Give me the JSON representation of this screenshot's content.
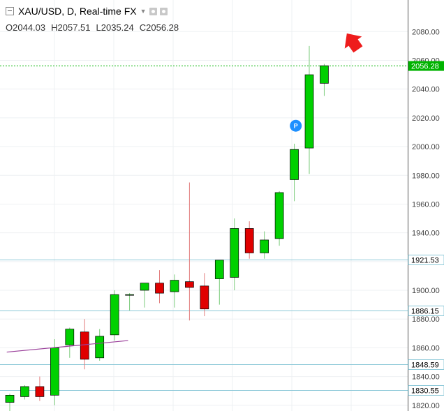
{
  "header": {
    "symbol": "XAU/USD, D, Real-time FX",
    "ohlc": [
      {
        "key": "O",
        "value": "2044.03"
      },
      {
        "key": "H",
        "value": "2057.51"
      },
      {
        "key": "L",
        "value": "2035.24"
      },
      {
        "key": "C",
        "value": "2056.28"
      }
    ]
  },
  "colors": {
    "up": "#00d000",
    "down": "#e00000",
    "level_line": "#8cc8d8",
    "current_price": "#00b300",
    "trendline": "#9a3f9a",
    "arrow": "#ee1c1c",
    "marker": "#1e90ff"
  },
  "chart_data": {
    "type": "candlestick",
    "title": "XAU/USD, D, Real-time FX",
    "ylim": [
      1816,
      2102
    ],
    "y_ticks": [
      "2080.00",
      "2060.00",
      "2040.00",
      "2020.00",
      "2000.00",
      "1980.00",
      "1960.00",
      "1940.00",
      "1920.00",
      "1900.00",
      "1880.00",
      "1860.00",
      "1840.00",
      "1820.00"
    ],
    "grid": true,
    "candles": [
      {
        "o": 1822,
        "h": 1828,
        "l": 1815,
        "c": 1827
      },
      {
        "o": 1826,
        "h": 1834,
        "l": 1824,
        "c": 1833
      },
      {
        "o": 1833,
        "h": 1840,
        "l": 1823,
        "c": 1826
      },
      {
        "o": 1827,
        "h": 1866,
        "l": 1820,
        "c": 1860
      },
      {
        "o": 1862,
        "h": 1874,
        "l": 1853,
        "c": 1873
      },
      {
        "o": 1871,
        "h": 1880,
        "l": 1845,
        "c": 1852
      },
      {
        "o": 1853,
        "h": 1873,
        "l": 1851,
        "c": 1868
      },
      {
        "o": 1869,
        "h": 1900,
        "l": 1865,
        "c": 1897
      },
      {
        "o": 1897,
        "h": 1898,
        "l": 1886,
        "c": 1897
      },
      {
        "o": 1900,
        "h": 1905,
        "l": 1888,
        "c": 1905
      },
      {
        "o": 1905,
        "h": 1914,
        "l": 1891,
        "c": 1898
      },
      {
        "o": 1899,
        "h": 1911,
        "l": 1888,
        "c": 1907
      },
      {
        "o": 1906,
        "h": 1975,
        "l": 1879,
        "c": 1902
      },
      {
        "o": 1903,
        "h": 1912,
        "l": 1882,
        "c": 1887
      },
      {
        "o": 1908,
        "h": 1921,
        "l": 1890,
        "c": 1921
      },
      {
        "o": 1909,
        "h": 1950,
        "l": 1900,
        "c": 1943
      },
      {
        "o": 1943,
        "h": 1948,
        "l": 1922,
        "c": 1926
      },
      {
        "o": 1926,
        "h": 1941,
        "l": 1922,
        "c": 1935
      },
      {
        "o": 1936,
        "h": 1969,
        "l": 1931,
        "c": 1968
      },
      {
        "o": 1977,
        "h": 2002,
        "l": 1962,
        "c": 1998
      },
      {
        "o": 1999,
        "h": 2070,
        "l": 1981,
        "c": 2050
      },
      {
        "o": 2044.03,
        "h": 2057.51,
        "l": 2035.24,
        "c": 2056.28
      }
    ],
    "horizontal_levels": [
      {
        "value": 1921.53,
        "label": "1921.53"
      },
      {
        "value": 1886.15,
        "label": "1886.15"
      },
      {
        "value": 1848.59,
        "label": "1848.59"
      },
      {
        "value": 1830.55,
        "label": "1830.55"
      }
    ],
    "current_price": {
      "value": 2056.28,
      "label": "2056.28"
    },
    "trendline": {
      "from": {
        "index": -0.2,
        "value": 1857
      },
      "to": {
        "index": 7.9,
        "value": 1865
      }
    },
    "marker": {
      "index": 19.1,
      "value": 2014.5,
      "label": "P"
    }
  }
}
